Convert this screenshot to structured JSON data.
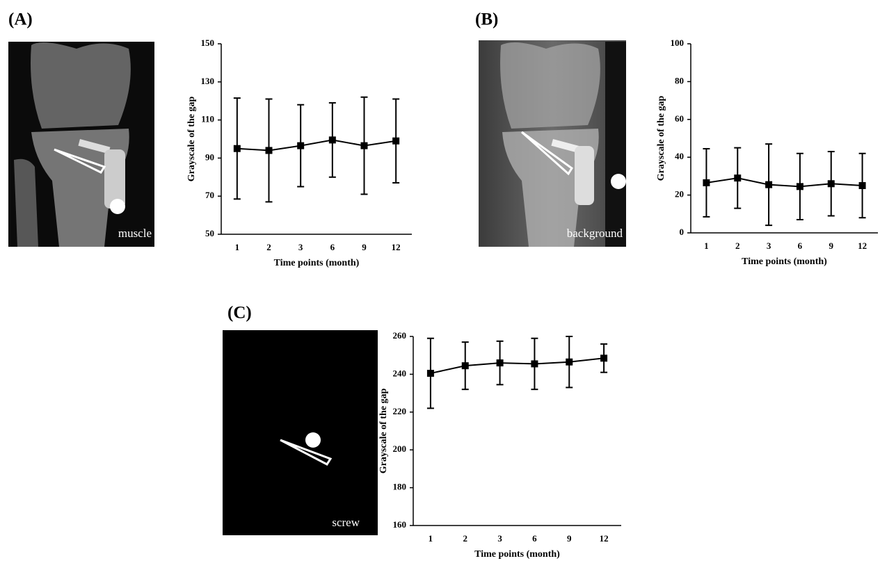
{
  "chart_data": [
    {
      "type": "line",
      "panel": "(A)",
      "image_label": "muscle",
      "x_label": "Time points (month)",
      "y_label": "Grayscale of the gap",
      "categories": [
        "1",
        "2",
        "3",
        "6",
        "9",
        "12"
      ],
      "values": [
        95,
        94,
        96.5,
        99.5,
        96.5,
        99
      ],
      "errors": [
        26.5,
        27,
        21.5,
        19.5,
        25.5,
        22
      ],
      "color": "#000000",
      "ylim": [
        50,
        150
      ],
      "yticks": [
        50,
        70,
        90,
        110,
        130,
        150
      ]
    },
    {
      "type": "line",
      "panel": "(B)",
      "image_label": "background",
      "x_label": "Time points (month)",
      "y_label": "Grayscale of the gap",
      "categories": [
        "1",
        "2",
        "3",
        "6",
        "9",
        "12"
      ],
      "values": [
        26.5,
        29,
        25.5,
        24.5,
        26,
        25
      ],
      "errors": [
        18,
        16,
        21.5,
        17.5,
        17,
        17
      ],
      "color": "#000000",
      "ylim": [
        0,
        100
      ],
      "yticks": [
        0,
        20,
        40,
        60,
        80,
        100
      ]
    },
    {
      "type": "line",
      "panel": "(C)",
      "image_label": "screw",
      "x_label": "Time points (month)",
      "y_label": "Grayscale of the gap",
      "categories": [
        "1",
        "2",
        "3",
        "6",
        "9",
        "12"
      ],
      "values": [
        240.5,
        244.5,
        246,
        245.5,
        246.5,
        248.5
      ],
      "errors": [
        18.5,
        12.5,
        11.5,
        13.5,
        13.5,
        7.5
      ],
      "color": "#000000",
      "ylim": [
        160,
        260
      ],
      "yticks": [
        160,
        180,
        200,
        220,
        240,
        260
      ]
    }
  ]
}
